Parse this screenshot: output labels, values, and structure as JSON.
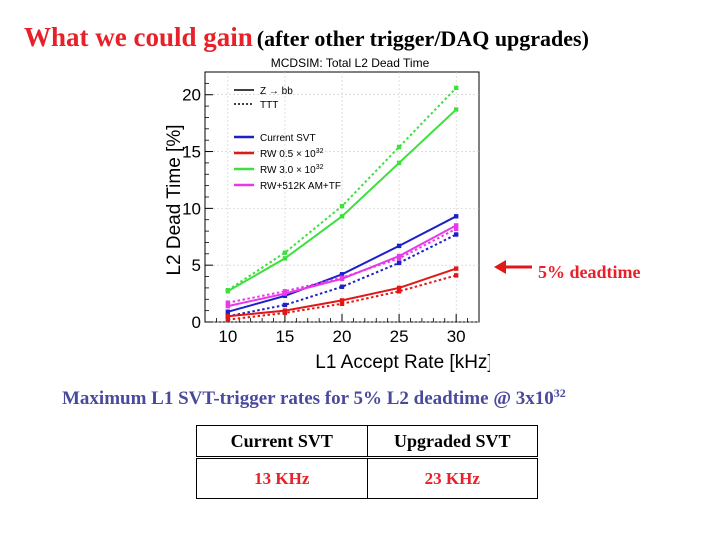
{
  "header": {
    "title_main": "What we could gain",
    "title_paren": "(after other trigger/DAQ upgrades)"
  },
  "chart_data": {
    "type": "line",
    "title": "MCDSIM: Total L2 Dead Time",
    "xlabel": "L1 Accept Rate [kHz]",
    "ylabel": "L2 Dead Time [%]",
    "x": [
      10,
      15,
      20,
      25,
      30
    ],
    "xlim": [
      8,
      32
    ],
    "ylim": [
      0,
      22
    ],
    "xticks": [
      "10",
      "15",
      "20",
      "25",
      "30"
    ],
    "yticks": [
      "0",
      "5",
      "10",
      "15",
      "20"
    ],
    "style_legend": [
      {
        "label": "Z → bb",
        "dash": "solid"
      },
      {
        "label": "TTT",
        "dash": "dotted"
      }
    ],
    "legend": [
      {
        "label": "Current SVT",
        "color": "#1f1fc8"
      },
      {
        "label": "RW 0.5 × 10",
        "sup": "32",
        "color": "#e01818"
      },
      {
        "label": "RW 3.0 × 10",
        "sup": "32",
        "color": "#3ee03e"
      },
      {
        "label": "RW+512K AM+TF",
        "color": "#e838e8"
      }
    ],
    "series": [
      {
        "color": "#1f1fc8",
        "dash": "solid",
        "values": [
          0.9,
          2.3,
          4.2,
          6.7,
          9.3
        ]
      },
      {
        "color": "#1f1fc8",
        "dash": "dotted",
        "values": [
          0.5,
          1.5,
          3.1,
          5.2,
          7.7
        ]
      },
      {
        "color": "#e01818",
        "dash": "solid",
        "values": [
          0.5,
          1.0,
          1.9,
          3.0,
          4.7
        ]
      },
      {
        "color": "#e01818",
        "dash": "dotted",
        "values": [
          0.2,
          0.8,
          1.6,
          2.7,
          4.1
        ]
      },
      {
        "color": "#3ee03e",
        "dash": "solid",
        "values": [
          2.7,
          5.6,
          9.3,
          14.0,
          18.7
        ]
      },
      {
        "color": "#3ee03e",
        "dash": "dotted",
        "values": [
          2.8,
          6.1,
          10.2,
          15.4,
          20.6
        ]
      },
      {
        "color": "#e838e8",
        "dash": "solid",
        "values": [
          1.4,
          2.5,
          3.8,
          5.8,
          8.5
        ]
      },
      {
        "color": "#e838e8",
        "dash": "dotted",
        "values": [
          1.7,
          2.7,
          3.9,
          5.6,
          8.2
        ]
      }
    ]
  },
  "annotation": {
    "text": "5% deadtime"
  },
  "summary": {
    "text": "Maximum L1 SVT-trigger rates for 5% L2 deadtime @ 3x10",
    "sup": "32"
  },
  "table": {
    "headers": [
      "Current SVT",
      "Upgraded SVT"
    ],
    "values": [
      "13 KHz",
      "23 KHz"
    ]
  }
}
